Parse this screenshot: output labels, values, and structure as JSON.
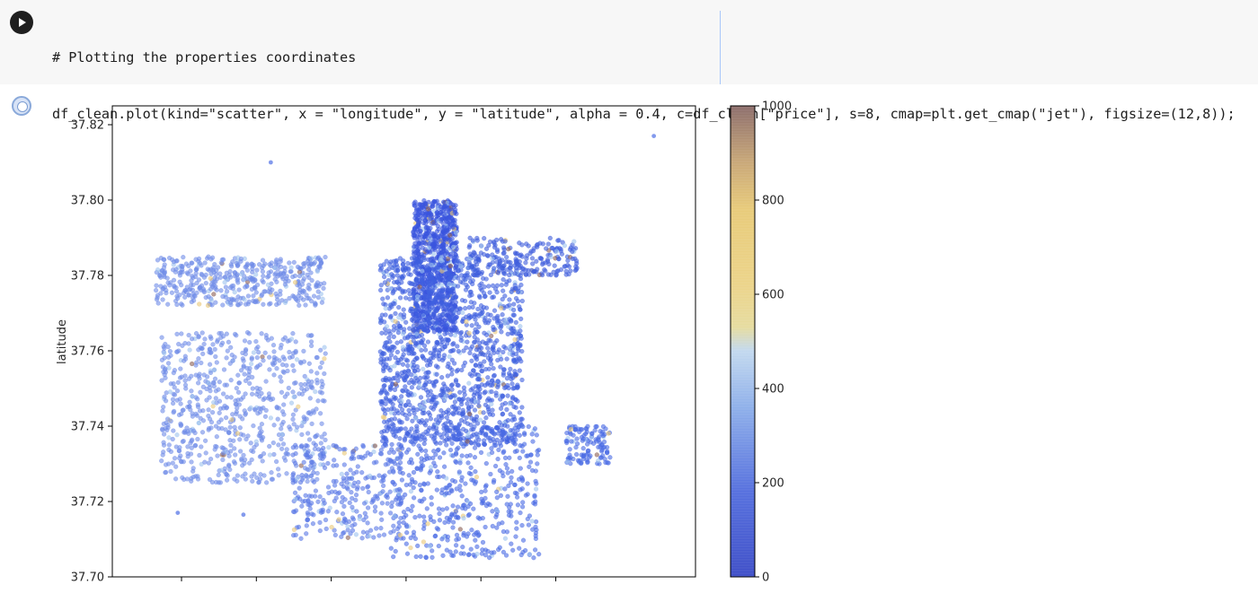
{
  "code_cell": {
    "lines": [
      "# Plotting the properties coordinates",
      "df_clean.plot(kind=\"scatter\", x = \"longitude\", y = \"latitude\", alpha = 0.4, c=df_clean[\"price\"], s=8, cmap=plt.get_cmap(\"jet\"), figsize=(12,8));"
    ]
  },
  "icons": {
    "run": "play-icon",
    "output": "output-cell-icon"
  },
  "chart_data": {
    "type": "scatter",
    "xlabel": "",
    "ylabel": "latitude",
    "ylim": [
      37.7,
      37.825
    ],
    "yticks": [
      "37.70",
      "37.72",
      "37.74",
      "37.76",
      "37.78",
      "37.80",
      "37.82"
    ],
    "xticks_count": 6,
    "colorbar": {
      "range": [
        0,
        1000
      ],
      "ticks": [
        "0",
        "200",
        "400",
        "600",
        "800",
        "1000"
      ]
    },
    "clusters": [
      {
        "x": [
          0.52,
          0.6
        ],
        "y": [
          37.765,
          37.8
        ],
        "count": 900,
        "color": "#3a55de"
      },
      {
        "x": [
          0.46,
          0.72
        ],
        "y": [
          37.735,
          37.785
        ],
        "count": 1400,
        "color": "#4060e0"
      },
      {
        "x": [
          0.48,
          0.75
        ],
        "y": [
          37.705,
          37.74
        ],
        "count": 500,
        "color": "#4a6ae4"
      },
      {
        "x": [
          0.06,
          0.36
        ],
        "y": [
          37.725,
          37.765
        ],
        "count": 700,
        "color": "#6f8ce8"
      },
      {
        "x": [
          0.05,
          0.36
        ],
        "y": [
          37.772,
          37.785
        ],
        "count": 450,
        "color": "#6f8ce8"
      },
      {
        "x": [
          0.3,
          0.5
        ],
        "y": [
          37.71,
          37.735
        ],
        "count": 300,
        "color": "#5a78e6"
      },
      {
        "x": [
          0.8,
          0.88
        ],
        "y": [
          37.73,
          37.74
        ],
        "count": 120,
        "color": "#4a6ae4"
      },
      {
        "x": [
          0.62,
          0.82
        ],
        "y": [
          37.78,
          37.79
        ],
        "count": 200,
        "color": "#3f5edc"
      }
    ],
    "outliers": [
      {
        "x": 0.96,
        "y": 37.817
      },
      {
        "x": 0.26,
        "y": 37.81
      },
      {
        "x": 0.09,
        "y": 37.717
      },
      {
        "x": 0.21,
        "y": 37.7165
      }
    ]
  }
}
